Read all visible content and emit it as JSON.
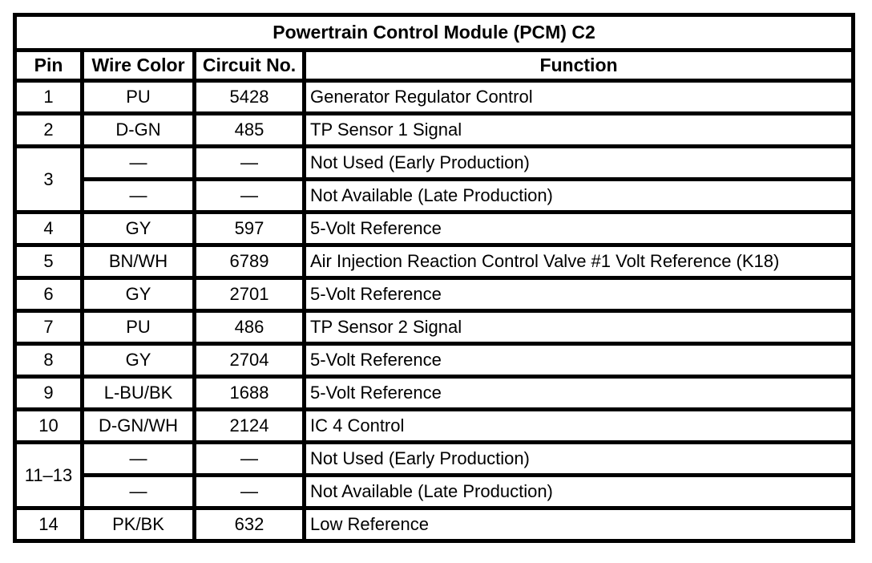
{
  "table": {
    "title": "Powertrain Control Module (PCM) C2",
    "headers": [
      "Pin",
      "Wire Color",
      "Circuit No.",
      "Function"
    ],
    "rows": [
      {
        "pin": "1",
        "wire": "PU",
        "circuit": "5428",
        "func": "Generator Regulator Control"
      },
      {
        "pin": "2",
        "wire": "D-GN",
        "circuit": "485",
        "func": "TP Sensor 1 Signal"
      },
      {
        "pin": "3",
        "rowspan": 2,
        "wire": "—",
        "circuit": "—",
        "func": "Not Used (Early Production)"
      },
      {
        "pin": null,
        "wire": "—",
        "circuit": "—",
        "func": "Not Available (Late Production)"
      },
      {
        "pin": "4",
        "wire": "GY",
        "circuit": "597",
        "func": "5-Volt Reference"
      },
      {
        "pin": "5",
        "wire": "BN/WH",
        "circuit": "6789",
        "func": "Air Injection Reaction Control Valve #1 Volt Reference (K18)"
      },
      {
        "pin": "6",
        "wire": "GY",
        "circuit": "2701",
        "func": "5-Volt Reference"
      },
      {
        "pin": "7",
        "wire": "PU",
        "circuit": "486",
        "func": "TP Sensor 2 Signal"
      },
      {
        "pin": "8",
        "wire": "GY",
        "circuit": "2704",
        "func": "5-Volt Reference"
      },
      {
        "pin": "9",
        "wire": "L-BU/BK",
        "circuit": "1688",
        "func": "5-Volt Reference"
      },
      {
        "pin": "10",
        "wire": "D-GN/WH",
        "circuit": "2124",
        "func": "IC 4 Control"
      },
      {
        "pin": "11–13",
        "rowspan": 2,
        "wire": "—",
        "circuit": "—",
        "func": "Not Used (Early Production)"
      },
      {
        "pin": null,
        "wire": "—",
        "circuit": "—",
        "func": "Not Available (Late Production)"
      },
      {
        "pin": "14",
        "wire": "PK/BK",
        "circuit": "632",
        "func": "Low Reference"
      }
    ]
  },
  "colors": {
    "border": "#000000",
    "text": "#000000",
    "background": "#ffffff"
  }
}
